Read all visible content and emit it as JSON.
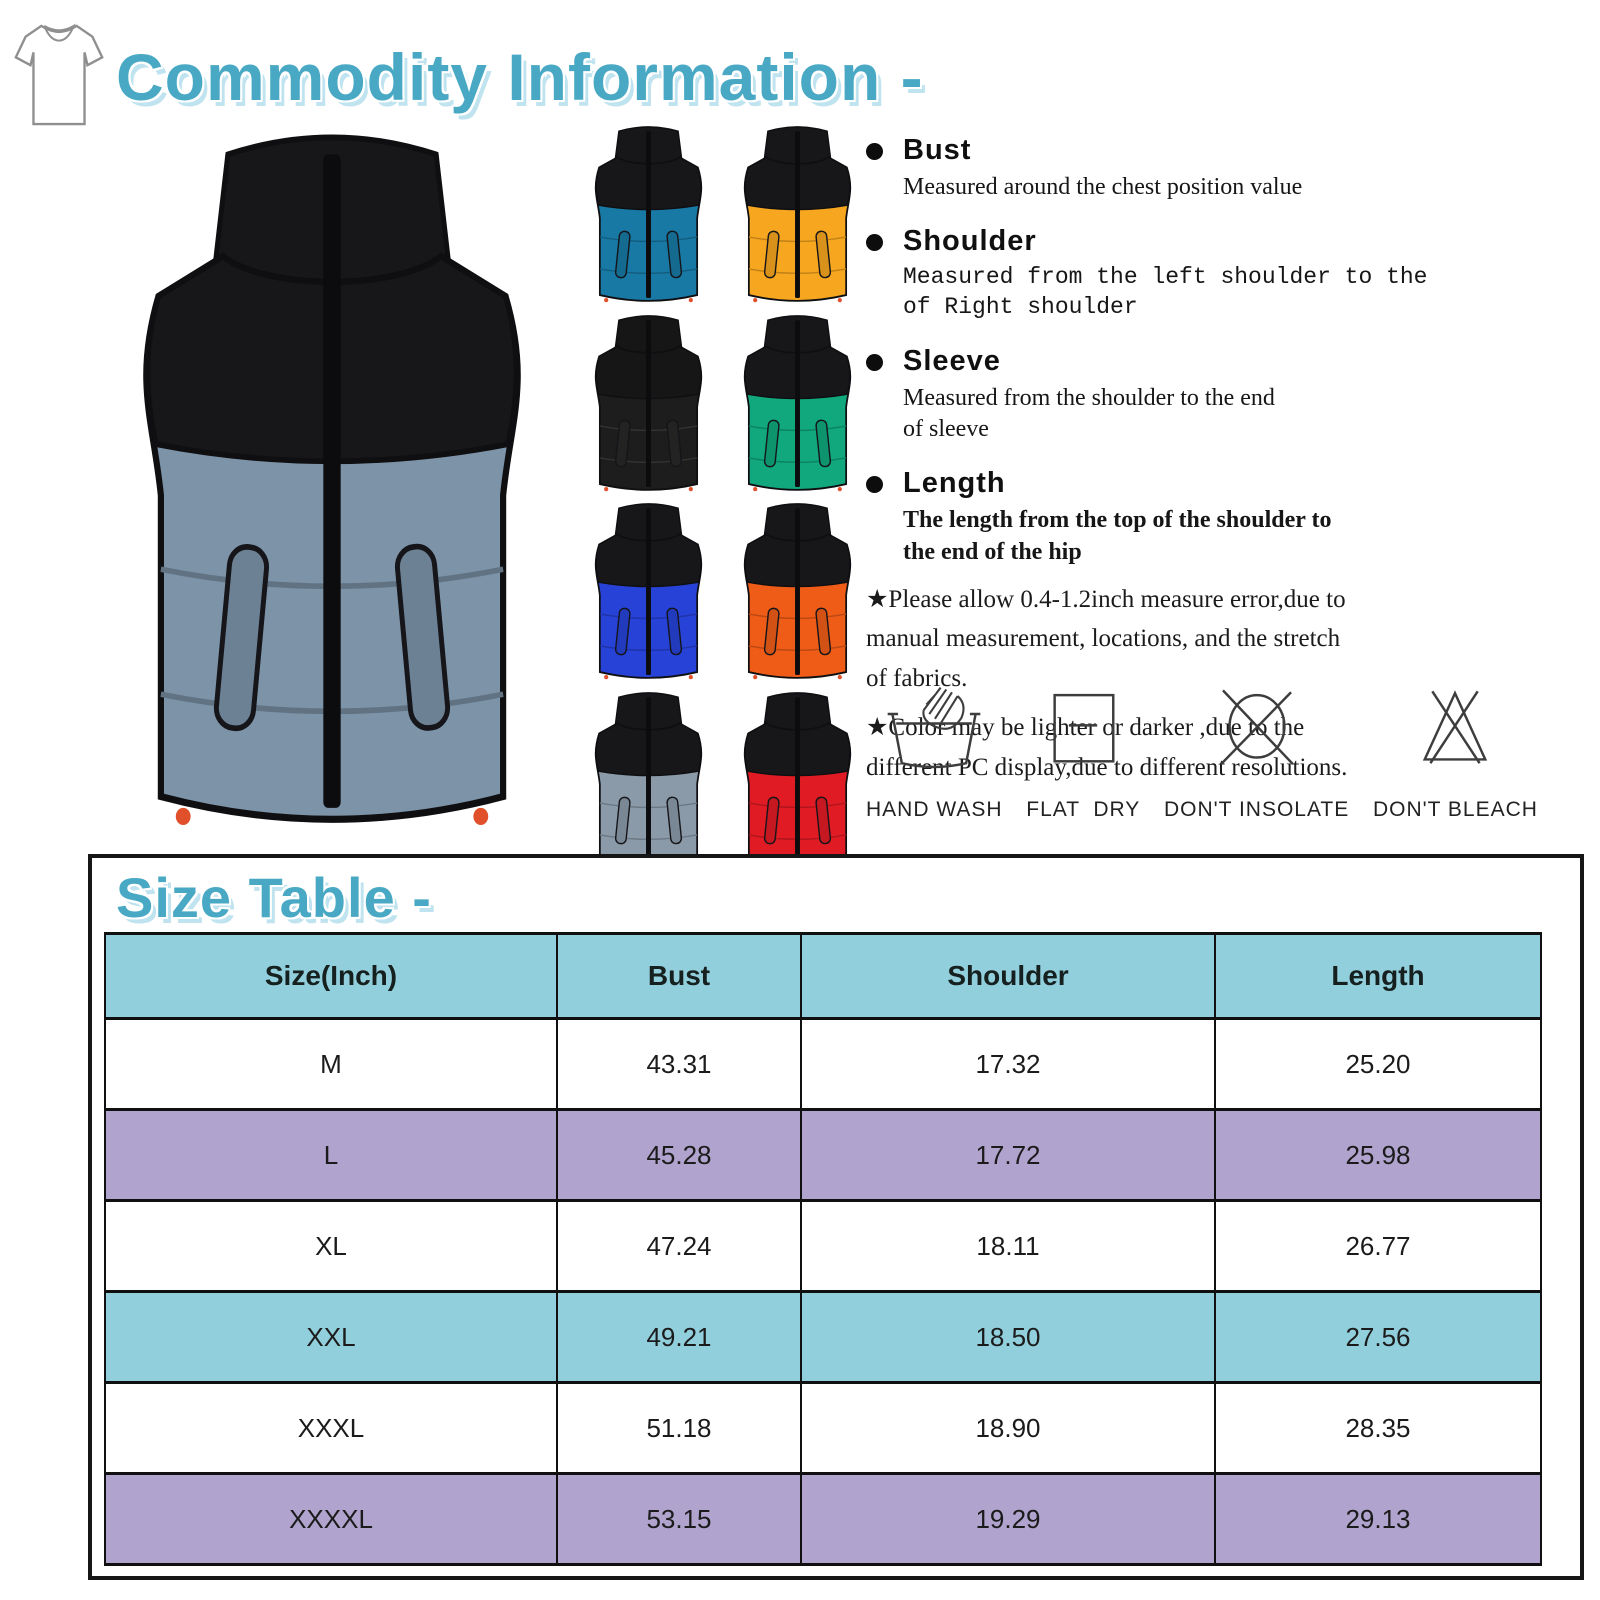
{
  "title": "Commodity Information -",
  "accent_color": "#49a9c4",
  "product": {
    "main_vest": {
      "top": "#17171a",
      "body": "#7c93a8"
    },
    "variants": [
      {
        "name": "ocean-blue",
        "top": "#17171a",
        "body": "#1879a4"
      },
      {
        "name": "amber",
        "top": "#17171a",
        "body": "#f6a61f"
      },
      {
        "name": "black",
        "top": "#161616",
        "body": "#1d1d1d"
      },
      {
        "name": "green",
        "top": "#17171a",
        "body": "#10a87c"
      },
      {
        "name": "royal-blue",
        "top": "#17171a",
        "body": "#2742d6"
      },
      {
        "name": "orange",
        "top": "#17171a",
        "body": "#ef5c17"
      },
      {
        "name": "gray",
        "top": "#17171a",
        "body": "#8b9aa9"
      },
      {
        "name": "red",
        "top": "#17171a",
        "body": "#e01b24"
      }
    ]
  },
  "measurements": [
    {
      "label": "Bust",
      "style": "serif",
      "lines": [
        "Measured around the chest position value",
        ""
      ]
    },
    {
      "label": "Shoulder",
      "style": "mono",
      "lines": [
        "Measured from the left shoulder to the",
        "of Right shoulder"
      ]
    },
    {
      "label": "Sleeve",
      "style": "serif",
      "lines": [
        "Measured from the shoulder to the end",
        "of sleeve"
      ]
    },
    {
      "label": "Length",
      "style": "serif-bold",
      "lines": [
        "The length from the top of the shoulder to",
        "the end of the hip"
      ]
    }
  ],
  "notes": [
    {
      "lines": [
        "★Please allow 0.4-1.2inch measure error,due to",
        "manual measurement, locations, and the stretch",
        "of fabrics.",
        ""
      ]
    },
    {
      "lines": [
        "★Color may be lighter or darker ,due to the",
        "different PC display,due to different resolutions.",
        "",
        ""
      ]
    }
  ],
  "care": [
    {
      "icon": "hand-wash-icon",
      "label": "HAND WASH"
    },
    {
      "icon": "flat-dry-icon",
      "label": "FLAT  DRY"
    },
    {
      "icon": "dont-insolate-icon",
      "label": "DON'T INSOLATE"
    },
    {
      "icon": "dont-bleach-icon",
      "label": "DON'T BLEACH"
    }
  ],
  "size_table": {
    "heading": "Size Table -",
    "header_bg": "#92cfdd",
    "columns": [
      "Size(Inch)",
      "Bust",
      "Shoulder",
      "Length"
    ],
    "rows": [
      {
        "bg": "#ffffff",
        "cells": [
          "M",
          "43.31",
          "17.32",
          "25.20"
        ]
      },
      {
        "bg": "#b0a3cd",
        "cells": [
          "L",
          "45.28",
          "17.72",
          "25.98"
        ]
      },
      {
        "bg": "#ffffff",
        "cells": [
          "XL",
          "47.24",
          "18.11",
          "26.77"
        ]
      },
      {
        "bg": "#92cfdd",
        "cells": [
          "XXL",
          "49.21",
          "18.50",
          "27.56"
        ]
      },
      {
        "bg": "#ffffff",
        "cells": [
          "XXXL",
          "51.18",
          "18.90",
          "28.35"
        ]
      },
      {
        "bg": "#b0a3cd",
        "cells": [
          "XXXXL",
          "53.15",
          "19.29",
          "29.13"
        ]
      }
    ]
  }
}
